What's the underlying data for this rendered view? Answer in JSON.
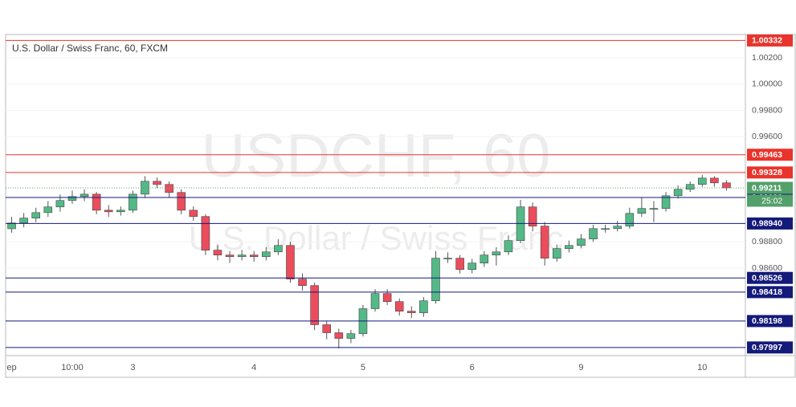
{
  "chart_data": {
    "type": "candlestick",
    "title": "U.S. Dollar / Swiss Franc, 60, FXCM",
    "watermark": "USDCHF, 60",
    "watermark_subtitle": "U.S. Dollar / Swiss Franc",
    "up_color": "#53b987",
    "down_color": "#eb4d5c",
    "categories": [
      "ep",
      null,
      null,
      null,
      null,
      "10:00",
      null,
      null,
      null,
      null,
      "3",
      null,
      null,
      null,
      null,
      null,
      null,
      null,
      null,
      null,
      "4",
      null,
      null,
      null,
      null,
      null,
      null,
      null,
      null,
      "5",
      null,
      null,
      null,
      null,
      null,
      null,
      null,
      null,
      "6",
      null,
      null,
      null,
      null,
      null,
      null,
      null,
      null,
      "9",
      null,
      null,
      null,
      null,
      null,
      null,
      null,
      null,
      null,
      "10",
      null,
      null
    ],
    "candles": [
      [
        0.989,
        0.9899,
        0.9887,
        0.98944
      ],
      [
        0.98944,
        0.9902,
        0.9891,
        0.98981
      ],
      [
        0.98981,
        0.9906,
        0.9895,
        0.99023
      ],
      [
        0.99023,
        0.9911,
        0.9899,
        0.99066
      ],
      [
        0.99066,
        0.9916,
        0.9903,
        0.99115
      ],
      [
        0.99115,
        0.9919,
        0.9909,
        0.99145
      ],
      [
        0.99145,
        0.992,
        0.9911,
        0.99163
      ],
      [
        0.99163,
        0.9918,
        0.9901,
        0.99041
      ],
      [
        0.99041,
        0.9908,
        0.9899,
        0.99029
      ],
      [
        0.99029,
        0.9907,
        0.99,
        0.99041
      ],
      [
        0.99041,
        0.9919,
        0.9902,
        0.99163
      ],
      [
        0.99163,
        0.993,
        0.9914,
        0.99261
      ],
      [
        0.99261,
        0.9929,
        0.9921,
        0.99237
      ],
      [
        0.99237,
        0.9926,
        0.9914,
        0.99176
      ],
      [
        0.99176,
        0.992,
        0.9901,
        0.99041
      ],
      [
        0.99041,
        0.9907,
        0.9896,
        0.98993
      ],
      [
        0.98993,
        0.9901,
        0.987,
        0.98737
      ],
      [
        0.98737,
        0.9878,
        0.9866,
        0.987
      ],
      [
        0.987,
        0.9873,
        0.9864,
        0.98688
      ],
      [
        0.98688,
        0.9874,
        0.9866,
        0.987
      ],
      [
        0.987,
        0.9873,
        0.9865,
        0.98688
      ],
      [
        0.98688,
        0.9876,
        0.9866,
        0.98724
      ],
      [
        0.98724,
        0.9882,
        0.987,
        0.98773
      ],
      [
        0.98773,
        0.988,
        0.9849,
        0.98517
      ],
      [
        0.98517,
        0.9856,
        0.9843,
        0.98468
      ],
      [
        0.98468,
        0.9849,
        0.9813,
        0.9817
      ],
      [
        0.9817,
        0.982,
        0.9806,
        0.98109
      ],
      [
        0.98109,
        0.9814,
        0.9799,
        0.98066
      ],
      [
        0.98066,
        0.9813,
        0.9803,
        0.98102
      ],
      [
        0.98102,
        0.9832,
        0.9808,
        0.98292
      ],
      [
        0.98292,
        0.9844,
        0.9827,
        0.98407
      ],
      [
        0.98407,
        0.9844,
        0.9832,
        0.98346
      ],
      [
        0.98346,
        0.9837,
        0.9824,
        0.98273
      ],
      [
        0.98273,
        0.9831,
        0.9822,
        0.98261
      ],
      [
        0.98261,
        0.9838,
        0.9823,
        0.98352
      ],
      [
        0.98352,
        0.9873,
        0.9833,
        0.98676
      ],
      [
        0.98676,
        0.9872,
        0.9864,
        0.98676
      ],
      [
        0.98676,
        0.987,
        0.9856,
        0.9859
      ],
      [
        0.9859,
        0.9867,
        0.9856,
        0.98639
      ],
      [
        0.98639,
        0.9873,
        0.9861,
        0.987
      ],
      [
        0.987,
        0.9876,
        0.9862,
        0.98724
      ],
      [
        0.98724,
        0.9885,
        0.987,
        0.9881
      ],
      [
        0.9881,
        0.9912,
        0.9879,
        0.99066
      ],
      [
        0.99066,
        0.991,
        0.9888,
        0.9892
      ],
      [
        0.9892,
        0.9895,
        0.9862,
        0.98676
      ],
      [
        0.98676,
        0.9878,
        0.9865,
        0.98749
      ],
      [
        0.98749,
        0.9881,
        0.9872,
        0.98773
      ],
      [
        0.98773,
        0.9886,
        0.9875,
        0.98822
      ],
      [
        0.98822,
        0.9893,
        0.988,
        0.98901
      ],
      [
        0.98901,
        0.9893,
        0.9887,
        0.98901
      ],
      [
        0.98901,
        0.9896,
        0.9888,
        0.9892
      ],
      [
        0.9892,
        0.9906,
        0.989,
        0.99017
      ],
      [
        0.99017,
        0.9914,
        0.9899,
        0.99054
      ],
      [
        0.99054,
        0.9911,
        0.9895,
        0.99054
      ],
      [
        0.99054,
        0.9918,
        0.9903,
        0.99151
      ],
      [
        0.99151,
        0.9923,
        0.9913,
        0.992
      ],
      [
        0.992,
        0.9926,
        0.9918,
        0.99237
      ],
      [
        0.99237,
        0.9931,
        0.9922,
        0.99285
      ],
      [
        0.99285,
        0.993,
        0.9922,
        0.99249
      ],
      [
        0.99249,
        0.9927,
        0.9919,
        0.99211
      ]
    ],
    "ylim": [
      0.97935,
      1.00365
    ],
    "yticks": [
      {
        "value": 1.002,
        "label": "1.00200"
      },
      {
        "value": 1.0,
        "label": "1.00000"
      },
      {
        "value": 0.998,
        "label": "0.99800"
      },
      {
        "value": 0.996,
        "label": "0.99600"
      },
      {
        "value": 0.988,
        "label": "0.98800"
      },
      {
        "value": 0.986,
        "label": "0.98600"
      }
    ],
    "grid": true,
    "levels": [
      {
        "value": 1.00332,
        "color": "#e8342c"
      },
      {
        "value": 0.99463,
        "color": "#e8342c"
      },
      {
        "value": 0.99328,
        "color": "#e8342c"
      },
      {
        "value": 0.99138,
        "color": "#141a7a"
      },
      {
        "value": {
          "value": 0.9894,
          "label": "0.98940"
        },
        "color": "#141a7a"
      },
      {
        "value": 0.98526,
        "color": "#141a7a"
      },
      {
        "value": 0.98418,
        "color": "#141a7a"
      },
      {
        "value": 0.98198,
        "color": "#141a7a"
      },
      {
        "value": 0.97997,
        "color": "#141a7a"
      }
    ],
    "current_price": 0.99211,
    "current_color": "#53a06a",
    "countdown": "25:02"
  }
}
